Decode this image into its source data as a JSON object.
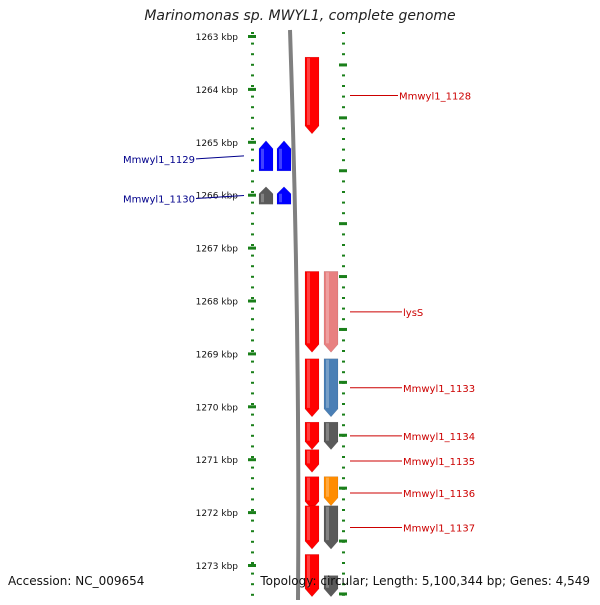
{
  "title": "Marinomonas sp. MWYL1, complete genome",
  "footer": {
    "accession_label": "Accession: NC_009654",
    "topology_label": "Topology: circular; Length: 5,100,344 bp; Genes: 4,549"
  },
  "axis": {
    "unit": "kbp",
    "ticks": [
      {
        "value": 1263,
        "label": "1263 kbp"
      },
      {
        "value": 1264,
        "label": "1264 kbp"
      },
      {
        "value": 1265,
        "label": "1265 kbp"
      },
      {
        "value": 1266,
        "label": "1266 kbp"
      },
      {
        "value": 1267,
        "label": "1267 kbp"
      },
      {
        "value": 1268,
        "label": "1268 kbp"
      },
      {
        "value": 1269,
        "label": "1269 kbp"
      },
      {
        "value": 1270,
        "label": "1270 kbp"
      },
      {
        "value": 1271,
        "label": "1271 kbp"
      },
      {
        "value": 1272,
        "label": "1272 kbp"
      },
      {
        "value": 1273,
        "label": "1273 kbp"
      }
    ]
  },
  "colors": {
    "forward_gene": "#ff0000",
    "reverse_gene": "#0000ff",
    "pink_feature": "#e88080",
    "steelblue_feature": "#4a7fb5",
    "orange_feature": "#ff8c00",
    "grey_feature": "#5a5a5a",
    "backbone": "#808080",
    "ticks": "#1a7f1a",
    "forward_label": "#cc0000",
    "reverse_label": "#00008b"
  },
  "features": [
    {
      "id": "f1128",
      "strand": "+",
      "track": "gene",
      "start": 1263.4,
      "end": 1264.85,
      "color": "#ff0000",
      "label": "Mmwyl1_1128"
    },
    {
      "id": "f1129a",
      "strand": "-",
      "track": "gene-outer",
      "start": 1264.98,
      "end": 1265.55,
      "color": "#0000ff",
      "label": "Mmwyl1_1129"
    },
    {
      "id": "f1129b",
      "strand": "-",
      "track": "gene",
      "start": 1264.98,
      "end": 1265.55,
      "color": "#0000ff",
      "label": ""
    },
    {
      "id": "f1130a",
      "strand": "-",
      "track": "gene-outer",
      "start": 1265.85,
      "end": 1266.18,
      "color": "#5a5a5a",
      "label": "Mmwyl1_1130"
    },
    {
      "id": "f1130b",
      "strand": "-",
      "track": "gene",
      "start": 1265.85,
      "end": 1266.18,
      "color": "#0000ff",
      "label": ""
    },
    {
      "id": "flysS",
      "strand": "+",
      "track": "gene",
      "start": 1267.45,
      "end": 1268.98,
      "color": "#ff0000",
      "label": "lysS"
    },
    {
      "id": "flysSb",
      "strand": "+",
      "track": "product",
      "start": 1267.45,
      "end": 1268.98,
      "color": "#e88080",
      "label": ""
    },
    {
      "id": "f1133",
      "strand": "+",
      "track": "gene",
      "start": 1269.1,
      "end": 1270.2,
      "color": "#ff0000",
      "label": "Mmwyl1_1133"
    },
    {
      "id": "f1133b",
      "strand": "+",
      "track": "product",
      "start": 1269.1,
      "end": 1270.2,
      "color": "#4a7fb5",
      "label": ""
    },
    {
      "id": "f1134",
      "strand": "+",
      "track": "gene",
      "start": 1270.3,
      "end": 1270.82,
      "color": "#ff0000",
      "label": "Mmwyl1_1134"
    },
    {
      "id": "f1134b",
      "strand": "+",
      "track": "product",
      "start": 1270.3,
      "end": 1270.82,
      "color": "#5a5a5a",
      "label": ""
    },
    {
      "id": "f1135",
      "strand": "+",
      "track": "gene",
      "start": 1270.82,
      "end": 1271.25,
      "color": "#ff0000",
      "label": "Mmwyl1_1135"
    },
    {
      "id": "f1136",
      "strand": "+",
      "track": "gene",
      "start": 1271.33,
      "end": 1271.95,
      "color": "#ff0000",
      "label": "Mmwyl1_1136"
    },
    {
      "id": "f1136b",
      "strand": "+",
      "track": "product",
      "start": 1271.33,
      "end": 1271.88,
      "color": "#ff8c00",
      "label": ""
    },
    {
      "id": "f1137",
      "strand": "+",
      "track": "gene",
      "start": 1271.88,
      "end": 1272.7,
      "color": "#ff0000",
      "label": "Mmwyl1_1137"
    },
    {
      "id": "f1137b",
      "strand": "+",
      "track": "product",
      "start": 1271.88,
      "end": 1272.7,
      "color": "#5a5a5a",
      "label": ""
    },
    {
      "id": "f1138",
      "strand": "+",
      "track": "gene",
      "start": 1272.8,
      "end": 1273.6,
      "color": "#ff0000",
      "label": ""
    },
    {
      "id": "f1138b",
      "strand": "+",
      "track": "product",
      "start": 1273.2,
      "end": 1273.6,
      "color": "#5a5a5a",
      "label": ""
    }
  ]
}
